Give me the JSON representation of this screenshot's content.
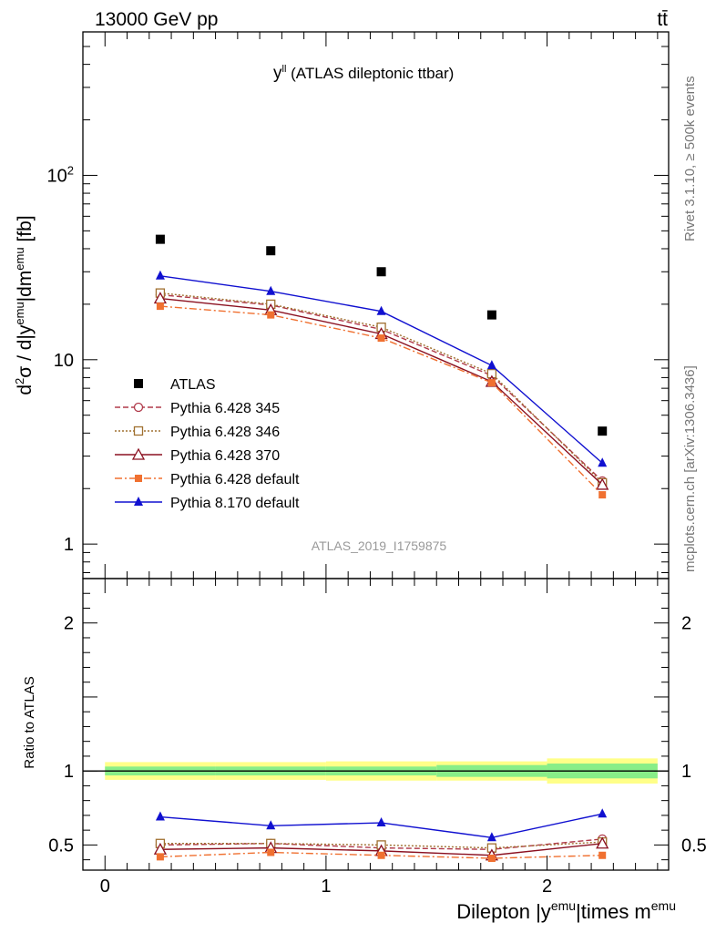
{
  "header": {
    "energy_label": "13000 GeV pp",
    "process_label": "tt̄"
  },
  "side_labels": {
    "rivet": "Rivet 3.1.10, ≥ 500k events",
    "mcplots": "mcplots.cern.ch [arXiv:1306.3436]"
  },
  "watermark": "ATLAS_2019_I1759875",
  "plot_title": {
    "main": "y",
    "sup": "ll",
    "rest": " (ATLAS dileptonic ttbar)"
  },
  "axes": {
    "y_main_label": "d²σ / d|y^emu|dm^emu [fb]",
    "y_ratio_label": "Ratio to ATLAS",
    "x_label_parts": [
      "Dilepton |y",
      "emu",
      "|times m",
      "emu"
    ]
  },
  "chart_data": {
    "type": "scatter",
    "x": [
      0.25,
      0.75,
      1.25,
      1.75,
      2.25
    ],
    "x_edges": [
      0,
      0.5,
      1,
      1.5,
      2,
      2.5
    ],
    "xlim": [
      -0.1,
      2.55
    ],
    "main_panel": {
      "yscale": "log",
      "ylim": [
        0.65,
        600
      ],
      "tick_labels": [
        "1",
        "10",
        "10²"
      ]
    },
    "ratio_panel": {
      "ylim": [
        0.33,
        2.3
      ],
      "tick_labels": [
        "0.5",
        "1",
        "2"
      ]
    },
    "legend_placement": "lower-left",
    "series": [
      {
        "name": "ATLAS",
        "color": "#000000",
        "marker": "square-filled",
        "line": "none",
        "values": [
          45,
          39,
          30,
          17.5,
          4.1
        ],
        "ratio": [
          1,
          1,
          1,
          1,
          1
        ],
        "ratio_band_inner": [
          0.03,
          0.03,
          0.03,
          0.04,
          0.05
        ],
        "ratio_band_outer": [
          0.06,
          0.06,
          0.065,
          0.065,
          0.085
        ]
      },
      {
        "name": "Pythia 6.428 345",
        "color": "#b03a4a",
        "marker": "circle-open",
        "line": "dashed",
        "values": [
          22.5,
          19.8,
          14.6,
          8.2,
          2.2
        ],
        "ratio": [
          0.5,
          0.51,
          0.48,
          0.47,
          0.54
        ]
      },
      {
        "name": "Pythia 6.428 346",
        "color": "#a07030",
        "marker": "square-open",
        "line": "dotted",
        "values": [
          23,
          20,
          15,
          8.4,
          2.15
        ],
        "ratio": [
          0.51,
          0.51,
          0.5,
          0.48,
          0.52
        ]
      },
      {
        "name": "Pythia 6.428 370",
        "color": "#8b1020",
        "marker": "triangle-open",
        "line": "solid",
        "values": [
          21.5,
          18.6,
          13.8,
          7.6,
          2.1
        ],
        "ratio": [
          0.47,
          0.48,
          0.46,
          0.43,
          0.51
        ]
      },
      {
        "name": "Pythia 6.428 default",
        "color": "#f07030",
        "marker": "square-filled-small",
        "line": "dashdot",
        "values": [
          19.5,
          17.5,
          13.1,
          7.5,
          1.85
        ],
        "ratio": [
          0.42,
          0.45,
          0.43,
          0.41,
          0.43
        ]
      },
      {
        "name": "Pythia 8.170 default",
        "color": "#1010d0",
        "marker": "triangle-filled",
        "line": "solid",
        "values": [
          28.5,
          23.5,
          18.3,
          9.3,
          2.75
        ],
        "ratio": [
          0.69,
          0.63,
          0.65,
          0.55,
          0.71
        ]
      }
    ]
  }
}
